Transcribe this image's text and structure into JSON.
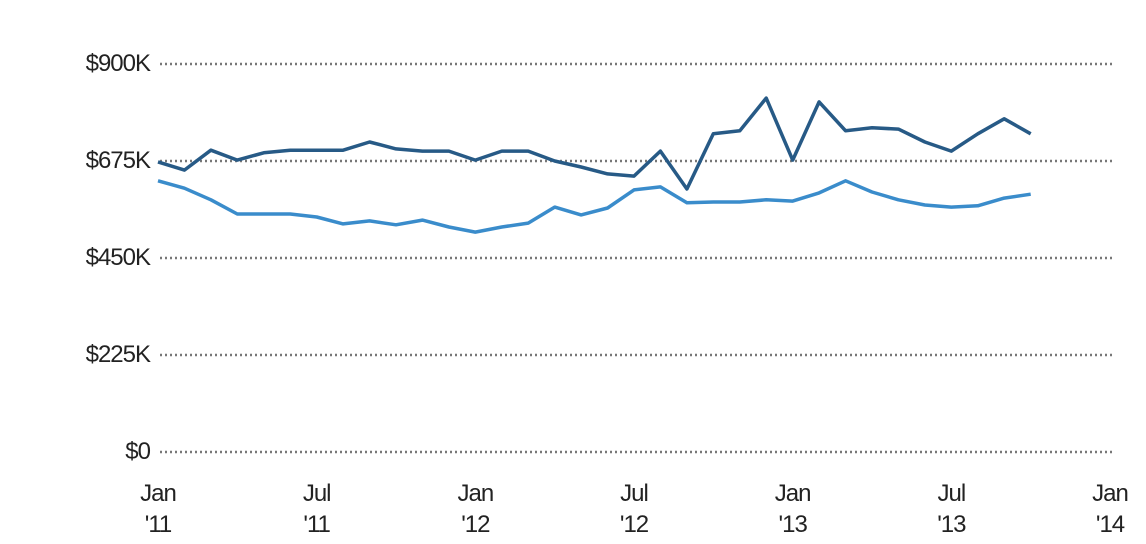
{
  "chart_data": {
    "type": "line",
    "x": [
      "2011-01",
      "2011-02",
      "2011-03",
      "2011-04",
      "2011-05",
      "2011-06",
      "2011-07",
      "2011-08",
      "2011-09",
      "2011-10",
      "2011-11",
      "2011-12",
      "2012-01",
      "2012-02",
      "2012-03",
      "2012-04",
      "2012-05",
      "2012-06",
      "2012-07",
      "2012-08",
      "2012-09",
      "2012-10",
      "2012-11",
      "2012-12",
      "2013-01",
      "2013-02",
      "2013-03",
      "2013-04",
      "2013-05",
      "2013-06",
      "2013-07",
      "2013-08",
      "2013-09",
      "2013-10"
    ],
    "series": [
      {
        "color": "#275a86",
        "values": [
          673000,
          654000,
          700000,
          677000,
          694000,
          700000,
          700000,
          700000,
          719000,
          703000,
          698000,
          698000,
          677000,
          698000,
          698000,
          675000,
          661000,
          645000,
          640000,
          698000,
          610000,
          738000,
          745000,
          821000,
          677000,
          812000,
          745000,
          752000,
          749000,
          719000,
          698000,
          738000,
          773000,
          738000
        ]
      },
      {
        "color": "#3a8ccb",
        "values": [
          629000,
          612000,
          585000,
          552000,
          552000,
          552000,
          545000,
          529000,
          536000,
          527000,
          538000,
          522000,
          510000,
          522000,
          531000,
          568000,
          550000,
          566000,
          608000,
          615000,
          578000,
          580000,
          580000,
          585000,
          582000,
          601000,
          629000,
          603000,
          585000,
          573000,
          568000,
          571000,
          589000,
          598000
        ]
      }
    ],
    "xlim": [
      "2011-01",
      "2014-01"
    ],
    "xticks": [
      {
        "value": "2011-01",
        "label": "Jan '11"
      },
      {
        "value": "2011-07",
        "label": "Jul '11"
      },
      {
        "value": "2012-01",
        "label": "Jan '12"
      },
      {
        "value": "2012-07",
        "label": "Jul '12"
      },
      {
        "value": "2013-01",
        "label": "Jan '13"
      },
      {
        "value": "2013-07",
        "label": "Jul '13"
      },
      {
        "value": "2014-01",
        "label": "Jan '14"
      }
    ],
    "ylim": [
      0,
      900000
    ],
    "yticks": [
      {
        "value": 0,
        "label": "$0"
      },
      {
        "value": 225000,
        "label": "$225K"
      },
      {
        "value": 450000,
        "label": "$450K"
      },
      {
        "value": 675000,
        "label": "$675K"
      },
      {
        "value": 900000,
        "label": "$900K"
      }
    ],
    "grid": true
  }
}
